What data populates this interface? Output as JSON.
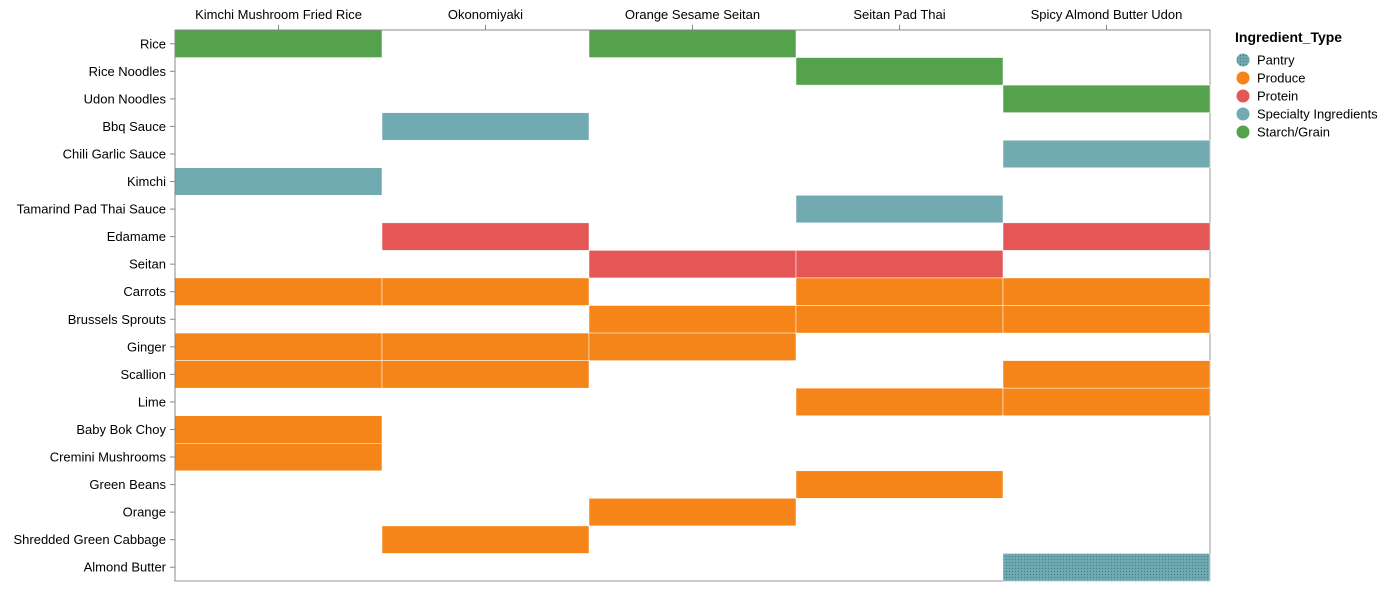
{
  "chart_data": {
    "type": "heatmap",
    "x_categories": [
      "Kimchi Mushroom Fried Rice",
      "Okonomiyaki",
      "Orange Sesame Seitan",
      "Seitan Pad Thai",
      "Spicy Almond Butter Udon"
    ],
    "y_categories": [
      "Rice",
      "Rice Noodles",
      "Udon Noodles",
      "Bbq Sauce",
      "Chili Garlic Sauce",
      "Kimchi",
      "Tamarind Pad Thai Sauce",
      "Edamame",
      "Seitan",
      "Carrots",
      "Brussels Sprouts",
      "Ginger",
      "Scallion",
      "Lime",
      "Baby Bok Choy",
      "Cremini Mushrooms",
      "Green Beans",
      "Orange",
      "Shredded Green Cabbage",
      "Almond Butter"
    ],
    "cells": [
      {
        "x": "Kimchi Mushroom Fried Rice",
        "y": "Rice",
        "type": "Starch/Grain"
      },
      {
        "x": "Orange Sesame Seitan",
        "y": "Rice",
        "type": "Starch/Grain"
      },
      {
        "x": "Seitan Pad Thai",
        "y": "Rice Noodles",
        "type": "Starch/Grain"
      },
      {
        "x": "Spicy Almond Butter Udon",
        "y": "Udon Noodles",
        "type": "Starch/Grain"
      },
      {
        "x": "Okonomiyaki",
        "y": "Bbq Sauce",
        "type": "Specialty Ingredients"
      },
      {
        "x": "Spicy Almond Butter Udon",
        "y": "Chili Garlic Sauce",
        "type": "Specialty Ingredients"
      },
      {
        "x": "Kimchi Mushroom Fried Rice",
        "y": "Kimchi",
        "type": "Specialty Ingredients"
      },
      {
        "x": "Seitan Pad Thai",
        "y": "Tamarind Pad Thai Sauce",
        "type": "Specialty Ingredients"
      },
      {
        "x": "Okonomiyaki",
        "y": "Edamame",
        "type": "Protein"
      },
      {
        "x": "Spicy Almond Butter Udon",
        "y": "Edamame",
        "type": "Protein"
      },
      {
        "x": "Orange Sesame Seitan",
        "y": "Seitan",
        "type": "Protein"
      },
      {
        "x": "Seitan Pad Thai",
        "y": "Seitan",
        "type": "Protein"
      },
      {
        "x": "Kimchi Mushroom Fried Rice",
        "y": "Carrots",
        "type": "Produce"
      },
      {
        "x": "Okonomiyaki",
        "y": "Carrots",
        "type": "Produce"
      },
      {
        "x": "Seitan Pad Thai",
        "y": "Carrots",
        "type": "Produce"
      },
      {
        "x": "Spicy Almond Butter Udon",
        "y": "Carrots",
        "type": "Produce"
      },
      {
        "x": "Orange Sesame Seitan",
        "y": "Brussels Sprouts",
        "type": "Produce"
      },
      {
        "x": "Seitan Pad Thai",
        "y": "Brussels Sprouts",
        "type": "Produce"
      },
      {
        "x": "Spicy Almond Butter Udon",
        "y": "Brussels Sprouts",
        "type": "Produce"
      },
      {
        "x": "Kimchi Mushroom Fried Rice",
        "y": "Ginger",
        "type": "Produce"
      },
      {
        "x": "Okonomiyaki",
        "y": "Ginger",
        "type": "Produce"
      },
      {
        "x": "Orange Sesame Seitan",
        "y": "Ginger",
        "type": "Produce"
      },
      {
        "x": "Kimchi Mushroom Fried Rice",
        "y": "Scallion",
        "type": "Produce"
      },
      {
        "x": "Okonomiyaki",
        "y": "Scallion",
        "type": "Produce"
      },
      {
        "x": "Spicy Almond Butter Udon",
        "y": "Scallion",
        "type": "Produce"
      },
      {
        "x": "Seitan Pad Thai",
        "y": "Lime",
        "type": "Produce"
      },
      {
        "x": "Spicy Almond Butter Udon",
        "y": "Lime",
        "type": "Produce"
      },
      {
        "x": "Kimchi Mushroom Fried Rice",
        "y": "Baby Bok Choy",
        "type": "Produce"
      },
      {
        "x": "Kimchi Mushroom Fried Rice",
        "y": "Cremini Mushrooms",
        "type": "Produce"
      },
      {
        "x": "Seitan Pad Thai",
        "y": "Green Beans",
        "type": "Produce"
      },
      {
        "x": "Orange Sesame Seitan",
        "y": "Orange",
        "type": "Produce"
      },
      {
        "x": "Okonomiyaki",
        "y": "Shredded Green Cabbage",
        "type": "Produce"
      },
      {
        "x": "Spicy Almond Butter Udon",
        "y": "Almond Butter",
        "type": "Pantry"
      }
    ],
    "legend": {
      "title": "Ingredient_Type",
      "placement": "right",
      "entries": [
        {
          "label": "Pantry",
          "color": "#6fa8b0",
          "dotted": true
        },
        {
          "label": "Produce",
          "color": "#f58518",
          "dotted": false
        },
        {
          "label": "Protein",
          "color": "#e45756",
          "dotted": false
        },
        {
          "label": "Specialty Ingredients",
          "color": "#72aab2",
          "dotted": false
        },
        {
          "label": "Starch/Grain",
          "color": "#54a24b",
          "dotted": false
        }
      ]
    },
    "x_axis_position": "top",
    "grid": false
  },
  "colors": {
    "axis": "#888888",
    "plot_border": "#999999",
    "cell_gap": "#ffffff"
  }
}
